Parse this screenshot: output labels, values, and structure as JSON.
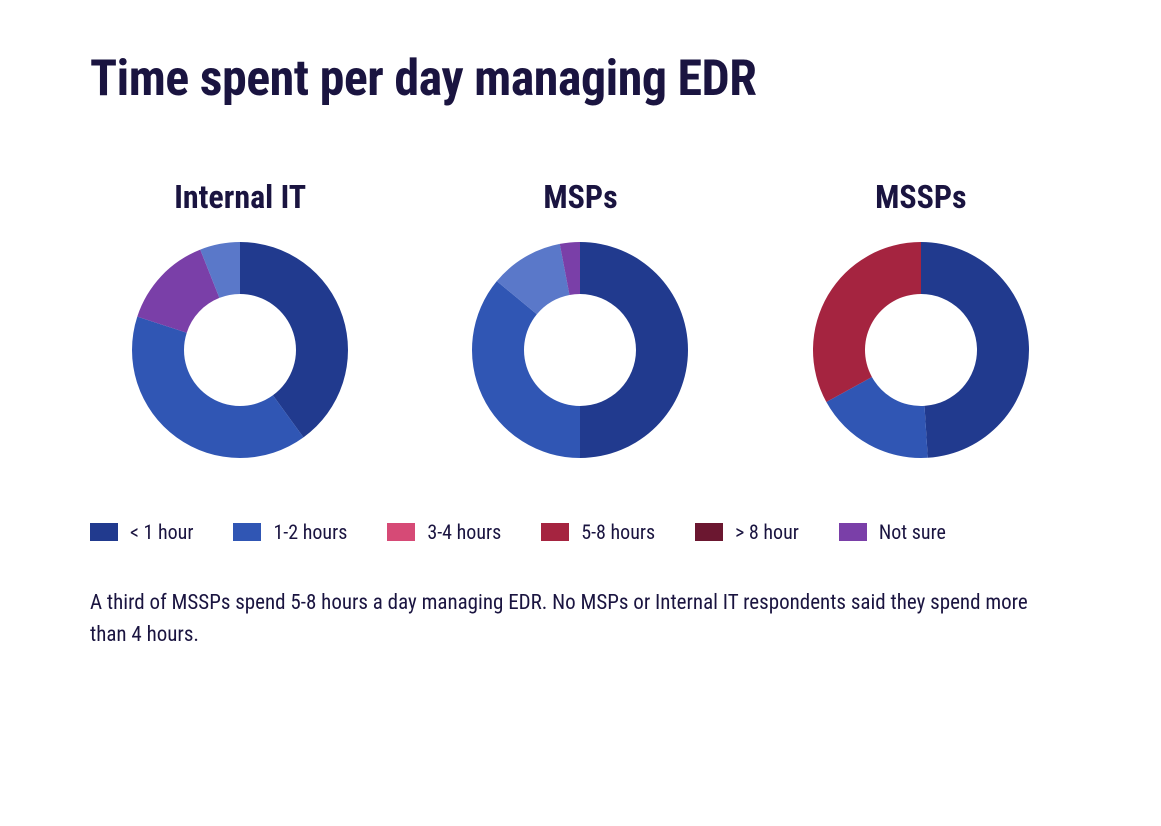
{
  "title": "Time spent per day managing EDR",
  "caption": "A third of MSSPs spend 5-8 hours a day managing EDR. No MSPs or Internal IT respondents said they spend more than 4 hours.",
  "legend": [
    {
      "label": "< 1 hour",
      "color": "#213a8e"
    },
    {
      "label": "1-2 hours",
      "color": "#3056b4"
    },
    {
      "label": "3-4 hours",
      "color": "#d64a76"
    },
    {
      "label": "5-8 hours",
      "color": "#a52440"
    },
    {
      "label": "> 8 hour",
      "color": "#6b1730"
    },
    {
      "label": "Not sure",
      "color": "#7a3fa8"
    }
  ],
  "donut": {
    "outer_radius": 108,
    "inner_radius": 56,
    "stroke": "#ffffff",
    "stroke_width": 0,
    "background_color": "#ffffff"
  },
  "chart_label_fontsize": 32,
  "title_fontsize": 50,
  "caption_fontsize": 21,
  "legend_fontsize": 20,
  "swatch": {
    "width": 28,
    "height": 18
  },
  "charts": [
    {
      "label": "Internal IT",
      "type": "donut",
      "slices": [
        {
          "key": "< 1 hour",
          "value": 40,
          "color": "#213a8e"
        },
        {
          "key": "1-2 hours",
          "value": 40,
          "color": "#3056b4"
        },
        {
          "key": "3-4 hours",
          "value": 0,
          "color": "#d64a76"
        },
        {
          "key": "5-8 hours",
          "value": 0,
          "color": "#a52440"
        },
        {
          "key": "> 8 hour",
          "value": 0,
          "color": "#6b1730"
        },
        {
          "key": "Not sure",
          "value": 14,
          "color": "#7a3fa8"
        },
        {
          "key": "1-2 hours (light)",
          "value": 6,
          "color": "#5a78c9"
        }
      ]
    },
    {
      "label": "MSPs",
      "type": "donut",
      "slices": [
        {
          "key": "< 1 hour",
          "value": 50,
          "color": "#213a8e"
        },
        {
          "key": "1-2 hours",
          "value": 36,
          "color": "#3056b4"
        },
        {
          "key": "1-2 hours (light)",
          "value": 11,
          "color": "#5a78c9"
        },
        {
          "key": "Not sure",
          "value": 3,
          "color": "#7a3fa8"
        }
      ]
    },
    {
      "label": "MSSPs",
      "type": "donut",
      "slices": [
        {
          "key": "< 1 hour",
          "value": 49,
          "color": "#213a8e"
        },
        {
          "key": "1-2 hours",
          "value": 18,
          "color": "#3056b4"
        },
        {
          "key": "5-8 hours",
          "value": 33,
          "color": "#a52440"
        }
      ]
    }
  ]
}
